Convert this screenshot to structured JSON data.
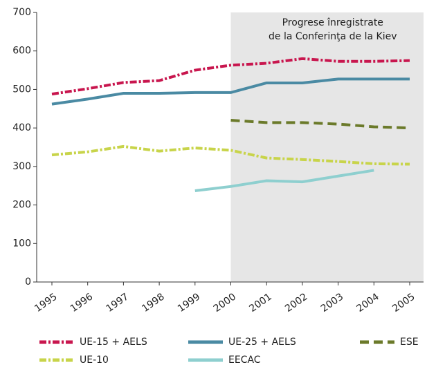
{
  "chart_data": {
    "type": "line",
    "categories": [
      "1995",
      "1996",
      "1997",
      "1998",
      "1999",
      "2000",
      "2001",
      "2002",
      "2003",
      "2004",
      "2005"
    ],
    "ylim": [
      0,
      700
    ],
    "yticks": [
      0,
      100,
      200,
      300,
      400,
      500,
      600,
      700
    ],
    "highlight_from": "2000",
    "highlight_color": "#e6e6e6",
    "annotation": [
      "Progrese înregistrate",
      "de la Conferinţa de la Kiev"
    ],
    "series": [
      {
        "name": "UE-15 + AELS",
        "color": "#c8164e",
        "dash": "dash-dot",
        "values": [
          488,
          502,
          518,
          523,
          550,
          563,
          568,
          580,
          573,
          573,
          575
        ]
      },
      {
        "name": "UE-25 + AELS",
        "color": "#4a8aa3",
        "dash": "solid",
        "values": [
          462,
          475,
          490,
          490,
          492,
          492,
          517,
          517,
          527,
          527,
          527
        ]
      },
      {
        "name": "ESE",
        "color": "#6b7a2a",
        "dash": "dash",
        "values": [
          null,
          null,
          null,
          null,
          null,
          420,
          414,
          414,
          410,
          403,
          400
        ]
      },
      {
        "name": "UE-10",
        "color": "#c8d44a",
        "dash": "dash-dot",
        "values": [
          330,
          338,
          352,
          340,
          348,
          342,
          322,
          318,
          313,
          307,
          306
        ]
      },
      {
        "name": "EECAC",
        "color": "#8ecfcf",
        "dash": "solid",
        "values": [
          null,
          null,
          null,
          null,
          237,
          248,
          263,
          260,
          275,
          290,
          null
        ]
      }
    ]
  }
}
